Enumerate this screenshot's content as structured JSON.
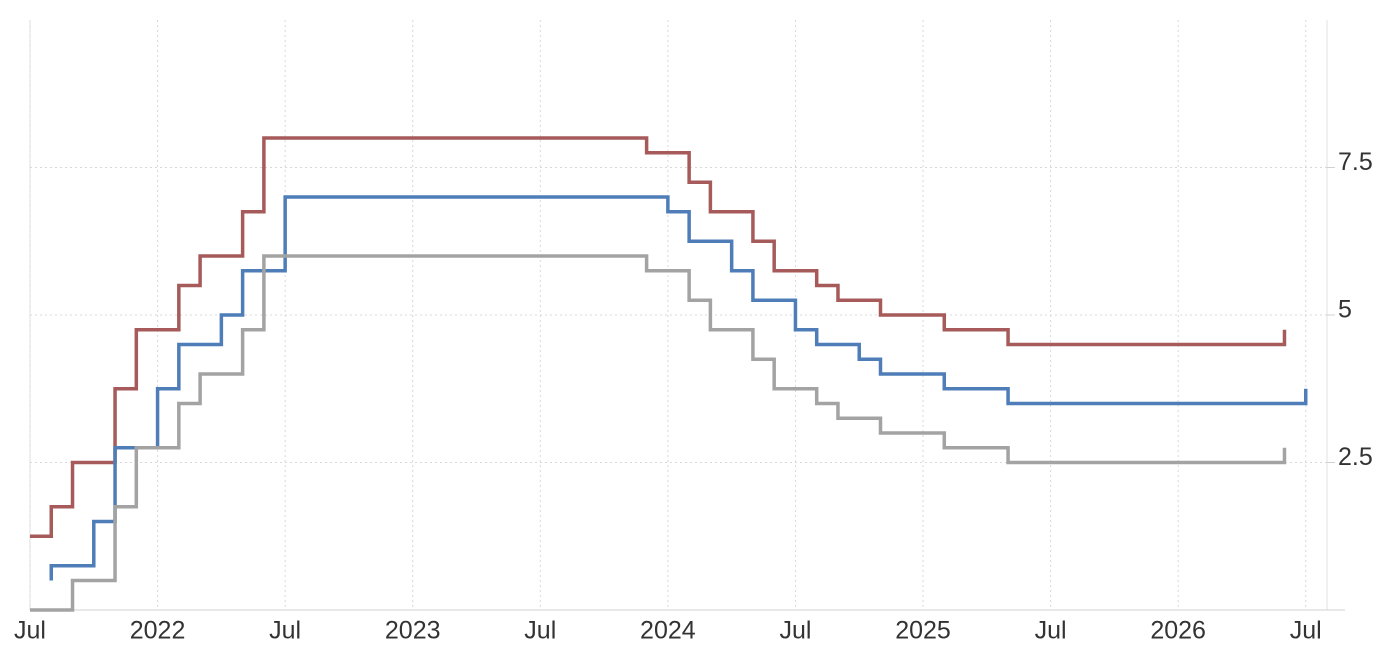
{
  "chart_data": {
    "type": "line",
    "step": "post",
    "grid": true,
    "xlim": [
      "2021-07",
      "2026-08"
    ],
    "xticks": [
      {
        "value": "2021-07",
        "label": "Jul"
      },
      {
        "value": "2022-01",
        "label": "2022"
      },
      {
        "value": "2022-07",
        "label": "Jul"
      },
      {
        "value": "2023-01",
        "label": "2023"
      },
      {
        "value": "2023-07",
        "label": "Jul"
      },
      {
        "value": "2024-01",
        "label": "2024"
      },
      {
        "value": "2024-07",
        "label": "Jul"
      },
      {
        "value": "2025-01",
        "label": "2025"
      },
      {
        "value": "2025-07",
        "label": "Jul"
      },
      {
        "value": "2026-01",
        "label": "2026"
      },
      {
        "value": "2026-07",
        "label": "Jul"
      }
    ],
    "ylim": [
      0,
      10
    ],
    "yticks": [
      2.5,
      5,
      7.5
    ],
    "series": [
      {
        "color": "#a65a5a",
        "x": [
          "2021-07",
          "2021-08",
          "2021-09",
          "2021-11",
          "2021-12",
          "2022-02",
          "2022-03",
          "2022-05",
          "2022-06",
          "2023-12",
          "2024-02",
          "2024-03",
          "2024-05",
          "2024-06",
          "2024-08",
          "2024-09",
          "2024-11",
          "2025-02",
          "2025-05",
          "2026-06"
        ],
        "values": [
          1.25,
          1.75,
          2.5,
          3.75,
          4.75,
          5.5,
          6.0,
          6.75,
          8.0,
          7.75,
          7.25,
          6.75,
          6.25,
          5.75,
          5.5,
          5.25,
          5.0,
          4.75,
          4.5,
          4.75
        ]
      },
      {
        "color": "#4f7db8",
        "x": [
          "2021-08",
          "2021-08",
          "2021-10",
          "2021-11",
          "2022-01",
          "2022-02",
          "2022-04",
          "2022-05",
          "2022-07",
          "2024-01",
          "2024-02",
          "2024-04",
          "2024-05",
          "2024-07",
          "2024-08",
          "2024-10",
          "2024-11",
          "2025-02",
          "2025-05",
          "2026-07"
        ],
        "values": [
          0.5,
          0.75,
          1.5,
          2.75,
          3.75,
          4.5,
          5.0,
          5.75,
          7.0,
          6.75,
          6.25,
          5.75,
          5.25,
          4.75,
          4.5,
          4.25,
          4.0,
          3.75,
          3.5,
          3.75
        ]
      },
      {
        "color": "#a3a3a3",
        "x": [
          "2021-07",
          "2021-09",
          "2021-11",
          "2021-12",
          "2022-02",
          "2022-03",
          "2022-05",
          "2022-06",
          "2023-12",
          "2024-02",
          "2024-03",
          "2024-05",
          "2024-06",
          "2024-08",
          "2024-09",
          "2024-11",
          "2025-02",
          "2025-05",
          "2026-06"
        ],
        "values": [
          0,
          0.5,
          1.75,
          2.75,
          3.5,
          4.0,
          4.75,
          6.0,
          5.75,
          5.25,
          4.75,
          4.25,
          3.75,
          3.5,
          3.25,
          3.0,
          2.75,
          2.5,
          2.75
        ]
      }
    ]
  }
}
